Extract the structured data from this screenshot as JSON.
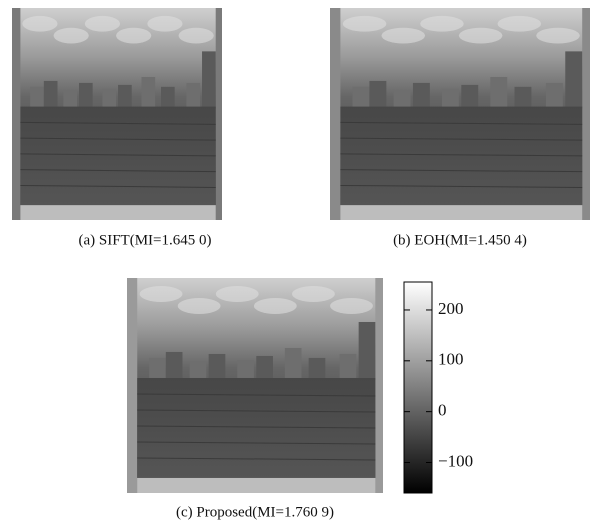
{
  "panels": [
    {
      "caption": "(a) SIFT(MI=1.645 0)"
    },
    {
      "caption": "(b) EOH(MI=1.450 4)"
    },
    {
      "caption": "(c) Proposed(MI=1.760 9)"
    }
  ],
  "colorbar": {
    "lim": [
      -160,
      255
    ],
    "ticks": [
      200,
      100,
      0,
      {
        "value": -100,
        "label": "−100"
      }
    ]
  }
}
